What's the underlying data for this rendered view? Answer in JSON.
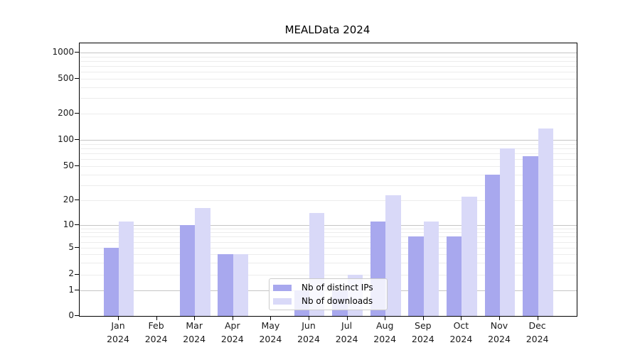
{
  "title": "MEALData 2024",
  "colors": {
    "ips": "#a8a8ee",
    "downloads": "#d9d9f8",
    "grid_major": "#c5c5c5",
    "grid_minor": "#ececec",
    "spine": "#000000",
    "background": "#ffffff"
  },
  "legend": {
    "items": [
      {
        "key": "ips",
        "label": "Nb of distinct IPs"
      },
      {
        "key": "downloads",
        "label": "Nb of downloads"
      }
    ]
  },
  "chart_data": {
    "type": "bar",
    "title": "MEALData 2024",
    "categories": [
      "Jan 2024",
      "Feb 2024",
      "Mar 2024",
      "Apr 2024",
      "May 2024",
      "Jun 2024",
      "Jul 2024",
      "Aug 2024",
      "Sep 2024",
      "Oct 2024",
      "Nov 2024",
      "Dec 2024"
    ],
    "series": [
      {
        "name": "Nb of distinct IPs",
        "values": [
          5,
          0,
          10,
          4,
          0,
          1,
          1,
          11,
          7,
          7,
          40,
          65
        ]
      },
      {
        "name": "Nb of downloads",
        "values": [
          11,
          0,
          16,
          4,
          0,
          14,
          2,
          23,
          11,
          22,
          80,
          135
        ]
      }
    ],
    "xlabel": "",
    "ylabel": "",
    "yscale": "symlog",
    "yticks": [
      0,
      1,
      2,
      5,
      10,
      20,
      50,
      100,
      200,
      500,
      1000
    ],
    "ylim": [
      0,
      1280
    ],
    "grid": true,
    "legend_position": "lower center"
  }
}
